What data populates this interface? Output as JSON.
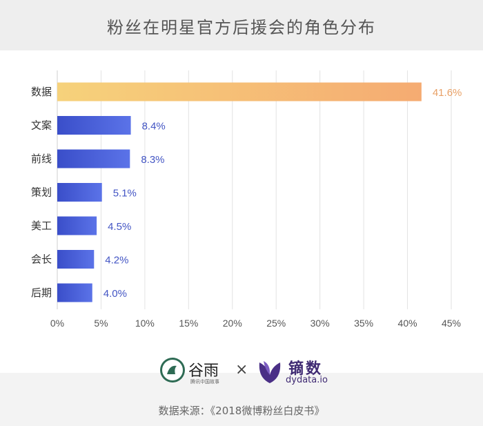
{
  "title": "粉丝在明星官方后援会的角色分布",
  "chart_data": {
    "type": "bar",
    "orientation": "horizontal",
    "categories": [
      "数据",
      "文案",
      "前线",
      "策划",
      "美工",
      "会长",
      "后期"
    ],
    "values": [
      41.6,
      8.4,
      8.3,
      5.1,
      4.5,
      4.2,
      4.0
    ],
    "value_labels": [
      "41.6%",
      "8.4%",
      "8.3%",
      "5.1%",
      "4.5%",
      "4.2%",
      "4.0%"
    ],
    "xlim": [
      0,
      45
    ],
    "xticks": [
      0,
      5,
      10,
      15,
      20,
      25,
      30,
      35,
      40,
      45
    ],
    "xtick_labels": [
      "0%",
      "5%",
      "10%",
      "15%",
      "20%",
      "25%",
      "30%",
      "35%",
      "40%",
      "45%"
    ],
    "grid": "vertical",
    "colors": {
      "highlight_bar": [
        "#f6d27b",
        "#f5ab72"
      ],
      "bar": [
        "#3a4ec9",
        "#5b73e8"
      ],
      "highlight_label": "#e8a066",
      "label": "#4355c4"
    }
  },
  "logos": {
    "guyu_name": "谷雨",
    "guyu_sub": "腾讯中国故事",
    "times": "×",
    "dy_name": "镝数",
    "dy_domain": "dydata.io"
  },
  "source": "数据来源：《2018微博粉丝白皮书》"
}
